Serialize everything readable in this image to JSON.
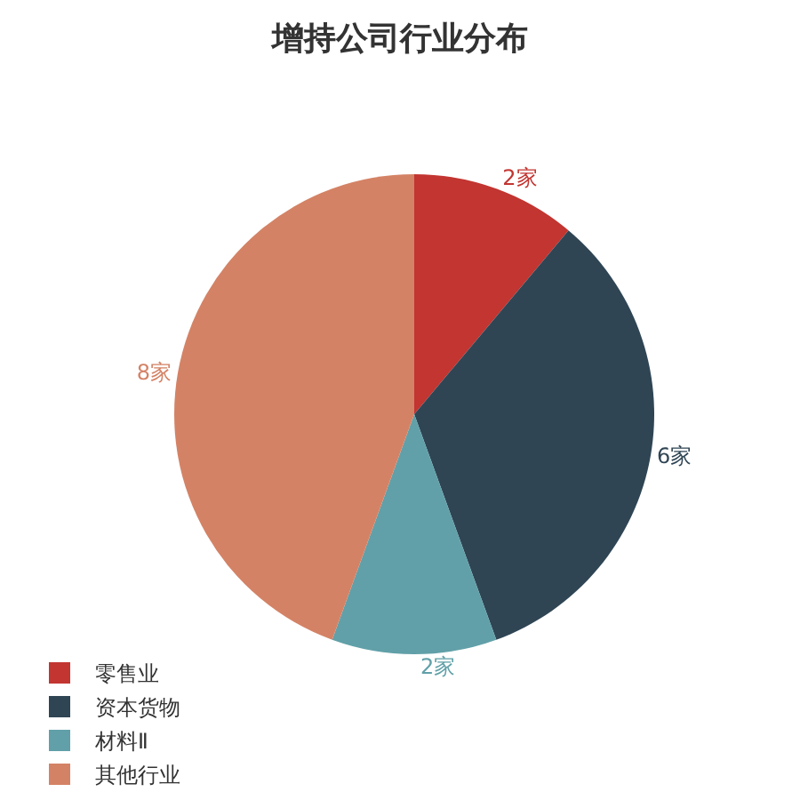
{
  "chart_data": {
    "type": "pie",
    "title": "增持公司行业分布",
    "categories": [
      "零售业",
      "资本货物",
      "材料Ⅱ",
      "其他行业"
    ],
    "values": [
      2,
      6,
      2,
      8
    ],
    "colors": [
      "#c23531",
      "#2f4554",
      "#61a0a8",
      "#d48265"
    ],
    "value_labels": [
      "2家",
      "6家",
      "2家",
      "8家"
    ],
    "legend": "bottom left"
  }
}
